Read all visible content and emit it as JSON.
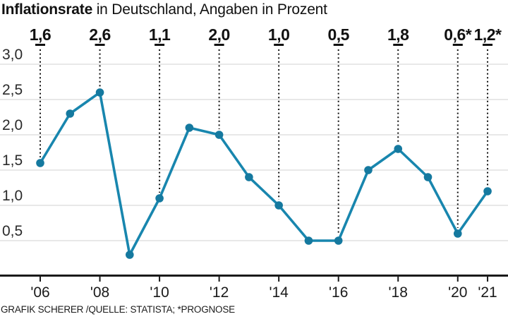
{
  "header": {
    "title_bold": "Inflationsrate",
    "title_rest": " in Deutschland, Angaben in Prozent"
  },
  "footer": {
    "credit": "GRAFIK SCHERER /QUELLE: STATISTA; *PROGNOSE"
  },
  "chart_data": {
    "type": "line",
    "title": "Inflationsrate in Deutschland, Angaben in Prozent",
    "ylabel": "Prozent",
    "x": [
      2006,
      2007,
      2008,
      2009,
      2010,
      2011,
      2012,
      2013,
      2014,
      2015,
      2016,
      2017,
      2018,
      2019,
      2020,
      2021
    ],
    "values": [
      1.6,
      2.3,
      2.6,
      0.3,
      1.1,
      2.1,
      2.0,
      1.4,
      1.0,
      0.5,
      0.5,
      1.5,
      1.8,
      1.4,
      0.6,
      1.2
    ],
    "ylim": [
      0,
      3.2
    ],
    "grid": true,
    "y_ticks": [
      {
        "value": 3.0,
        "label": "3,0"
      },
      {
        "value": 2.5,
        "label": "2,5"
      },
      {
        "value": 2.0,
        "label": "2,0"
      },
      {
        "value": 1.5,
        "label": "1,5"
      },
      {
        "value": 1.0,
        "label": "1,0"
      },
      {
        "value": 0.5,
        "label": "0,5"
      }
    ],
    "x_ticks": [
      {
        "year": 2006,
        "label": "'06"
      },
      {
        "year": 2008,
        "label": "'08"
      },
      {
        "year": 2010,
        "label": "'10"
      },
      {
        "year": 2012,
        "label": "'12"
      },
      {
        "year": 2014,
        "label": "'14"
      },
      {
        "year": 2016,
        "label": "'16"
      },
      {
        "year": 2018,
        "label": "'18"
      },
      {
        "year": 2020,
        "label": "'20"
      },
      {
        "year": 2021,
        "label": "'21"
      }
    ],
    "annotations": [
      {
        "year": 2006,
        "label": "1,6"
      },
      {
        "year": 2008,
        "label": "2,6"
      },
      {
        "year": 2010,
        "label": "1,1"
      },
      {
        "year": 2012,
        "label": "2,0"
      },
      {
        "year": 2014,
        "label": "1,0"
      },
      {
        "year": 2016,
        "label": "0,5"
      },
      {
        "year": 2018,
        "label": "1,8"
      },
      {
        "year": 2020,
        "label": "0,6*"
      },
      {
        "year": 2021,
        "label": "1,2*"
      }
    ],
    "colors": {
      "line": "#1886ae",
      "marker": "#15799f",
      "grid": "#dadada",
      "axis": "#1a1a1a",
      "text": "#111111",
      "annotation_line": "#111111"
    }
  }
}
